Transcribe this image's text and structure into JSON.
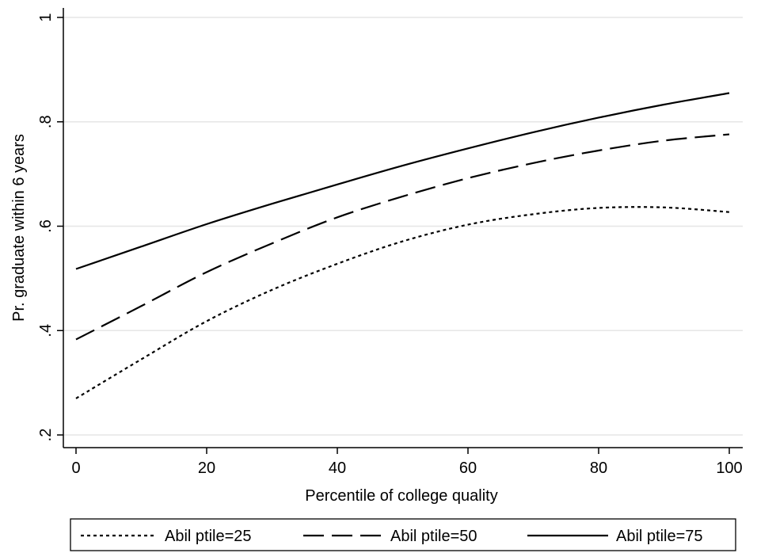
{
  "chart_data": {
    "type": "line",
    "xlabel": "Percentile of college quality",
    "ylabel": "Pr. graduate within 6 years",
    "xlim": [
      0,
      100
    ],
    "ylim": [
      0.2,
      1.0
    ],
    "x_ticks": [
      0,
      20,
      40,
      60,
      80,
      100
    ],
    "x_tick_labels": [
      "0",
      "20",
      "40",
      "60",
      "80",
      "100"
    ],
    "y_ticks": [
      0.2,
      0.4,
      0.6,
      0.8,
      1.0
    ],
    "y_tick_labels": [
      ".2",
      ".4",
      ".6",
      ".8",
      "1"
    ],
    "grid": "horizontal",
    "legend_position": "bottom",
    "series": [
      {
        "name": "Abil ptile=25",
        "style": "dotted",
        "x": [
          0,
          10,
          20,
          30,
          40,
          50,
          60,
          70,
          80,
          90,
          100
        ],
        "y": [
          0.27,
          0.345,
          0.418,
          0.478,
          0.528,
          0.571,
          0.603,
          0.623,
          0.635,
          0.636,
          0.627
        ]
      },
      {
        "name": "Abil ptile=50",
        "style": "dashed",
        "x": [
          0,
          10,
          20,
          30,
          40,
          50,
          60,
          70,
          80,
          90,
          100
        ],
        "y": [
          0.383,
          0.447,
          0.512,
          0.567,
          0.617,
          0.657,
          0.692,
          0.721,
          0.745,
          0.764,
          0.776
        ]
      },
      {
        "name": "Abil ptile=75",
        "style": "solid",
        "x": [
          0,
          10,
          20,
          30,
          40,
          50,
          60,
          70,
          80,
          90,
          100
        ],
        "y": [
          0.518,
          0.561,
          0.604,
          0.643,
          0.68,
          0.716,
          0.749,
          0.78,
          0.808,
          0.833,
          0.855
        ]
      }
    ]
  }
}
